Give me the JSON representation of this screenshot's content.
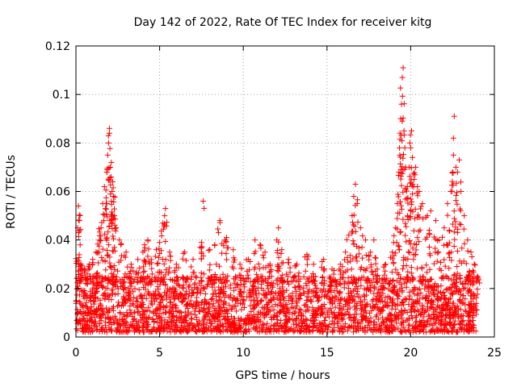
{
  "chart_data": {
    "type": "scatter",
    "title": "Day 142 of 2022, Rate Of TEC Index for receiver kitg",
    "xlabel": "GPS time / hours",
    "ylabel": "ROTI / TECUs",
    "xlim": [
      0,
      25
    ],
    "ylim": [
      0,
      0.12
    ],
    "xticks": [
      0,
      5,
      10,
      15,
      20,
      25
    ],
    "xtick_labels": [
      "0",
      "5",
      "10",
      "15",
      "20",
      "25"
    ],
    "yticks": [
      0,
      0.02,
      0.04,
      0.06,
      0.08,
      0.1,
      0.12
    ],
    "ytick_labels": [
      "0",
      "0.02",
      "0.04",
      "0.06",
      "0.08",
      "0.1",
      "0.12"
    ],
    "grid": true,
    "marker": "plus",
    "series": [
      {
        "name": "ROTI",
        "color": "#ff0000",
        "points": [
          [
            0.1,
            0.045
          ],
          [
            0.15,
            0.054
          ],
          [
            0.2,
            0.048
          ],
          [
            0.25,
            0.038
          ],
          [
            0.3,
            0.03
          ],
          [
            0.5,
            0.028
          ],
          [
            0.8,
            0.03
          ],
          [
            1.0,
            0.032
          ],
          [
            1.2,
            0.035
          ],
          [
            1.4,
            0.04
          ],
          [
            1.5,
            0.045
          ],
          [
            1.6,
            0.055
          ],
          [
            1.7,
            0.062
          ],
          [
            1.8,
            0.055
          ],
          [
            1.85,
            0.068
          ],
          [
            1.9,
            0.075
          ],
          [
            1.95,
            0.08
          ],
          [
            2.0,
            0.084
          ],
          [
            2.0,
            0.086
          ],
          [
            2.05,
            0.07
          ],
          [
            2.1,
            0.066
          ],
          [
            2.15,
            0.06
          ],
          [
            2.2,
            0.064
          ],
          [
            2.25,
            0.058
          ],
          [
            2.3,
            0.05
          ],
          [
            2.4,
            0.045
          ],
          [
            2.6,
            0.04
          ],
          [
            3.0,
            0.035
          ],
          [
            3.3,
            0.03
          ],
          [
            3.7,
            0.032
          ],
          [
            4.0,
            0.035
          ],
          [
            4.1,
            0.038
          ],
          [
            4.3,
            0.04
          ],
          [
            4.5,
            0.032
          ],
          [
            4.8,
            0.036
          ],
          [
            5.0,
            0.039
          ],
          [
            5.2,
            0.047
          ],
          [
            5.3,
            0.05
          ],
          [
            5.35,
            0.053
          ],
          [
            5.6,
            0.035
          ],
          [
            6.0,
            0.03
          ],
          [
            6.5,
            0.035
          ],
          [
            7.0,
            0.032
          ],
          [
            7.5,
            0.039
          ],
          [
            7.6,
            0.056
          ],
          [
            8.0,
            0.036
          ],
          [
            8.3,
            0.038
          ],
          [
            8.6,
            0.048
          ],
          [
            8.9,
            0.04
          ],
          [
            9.0,
            0.041
          ],
          [
            9.4,
            0.036
          ],
          [
            9.8,
            0.03
          ],
          [
            10.3,
            0.032
          ],
          [
            10.7,
            0.04
          ],
          [
            11.0,
            0.038
          ],
          [
            11.3,
            0.035
          ],
          [
            11.6,
            0.03
          ],
          [
            12.0,
            0.04
          ],
          [
            12.1,
            0.045
          ],
          [
            12.3,
            0.036
          ],
          [
            12.7,
            0.032
          ],
          [
            13.2,
            0.03
          ],
          [
            13.8,
            0.034
          ],
          [
            14.2,
            0.03
          ],
          [
            14.8,
            0.032
          ],
          [
            15.3,
            0.028
          ],
          [
            15.8,
            0.03
          ],
          [
            16.1,
            0.035
          ],
          [
            16.3,
            0.042
          ],
          [
            16.5,
            0.05
          ],
          [
            16.6,
            0.058
          ],
          [
            16.7,
            0.063
          ],
          [
            16.8,
            0.055
          ],
          [
            17.0,
            0.045
          ],
          [
            17.3,
            0.04
          ],
          [
            17.6,
            0.035
          ],
          [
            17.8,
            0.04
          ],
          [
            18.0,
            0.028
          ],
          [
            18.5,
            0.03
          ],
          [
            18.9,
            0.035
          ],
          [
            19.1,
            0.045
          ],
          [
            19.2,
            0.055
          ],
          [
            19.3,
            0.068
          ],
          [
            19.35,
            0.075
          ],
          [
            19.4,
            0.09
          ],
          [
            19.45,
            0.096
          ],
          [
            19.5,
            0.107
          ],
          [
            19.55,
            0.111
          ],
          [
            19.6,
            0.085
          ],
          [
            19.65,
            0.078
          ],
          [
            19.7,
            0.07
          ],
          [
            19.8,
            0.062
          ],
          [
            19.9,
            0.07
          ],
          [
            19.95,
            0.08
          ],
          [
            20.0,
            0.078
          ],
          [
            20.05,
            0.085
          ],
          [
            20.1,
            0.074
          ],
          [
            20.2,
            0.065
          ],
          [
            20.3,
            0.07
          ],
          [
            20.4,
            0.062
          ],
          [
            20.5,
            0.06
          ],
          [
            20.7,
            0.055
          ],
          [
            21.0,
            0.05
          ],
          [
            21.2,
            0.052
          ],
          [
            21.5,
            0.048
          ],
          [
            21.7,
            0.04
          ],
          [
            22.0,
            0.045
          ],
          [
            22.2,
            0.055
          ],
          [
            22.4,
            0.06
          ],
          [
            22.5,
            0.068
          ],
          [
            22.55,
            0.082
          ],
          [
            22.6,
            0.091
          ],
          [
            22.7,
            0.07
          ],
          [
            22.8,
            0.068
          ],
          [
            22.9,
            0.073
          ],
          [
            23.0,
            0.06
          ],
          [
            23.2,
            0.05
          ],
          [
            23.4,
            0.04
          ],
          [
            23.6,
            0.035
          ],
          [
            23.8,
            0.03
          ],
          [
            24.0,
            0.025
          ]
        ],
        "noise_band": {
          "x_range": [
            0,
            24
          ],
          "y_range": [
            0.002,
            0.025
          ],
          "description": "dense cloud of points between 0.002 and 0.025 TECU/s across all hours"
        }
      }
    ]
  }
}
